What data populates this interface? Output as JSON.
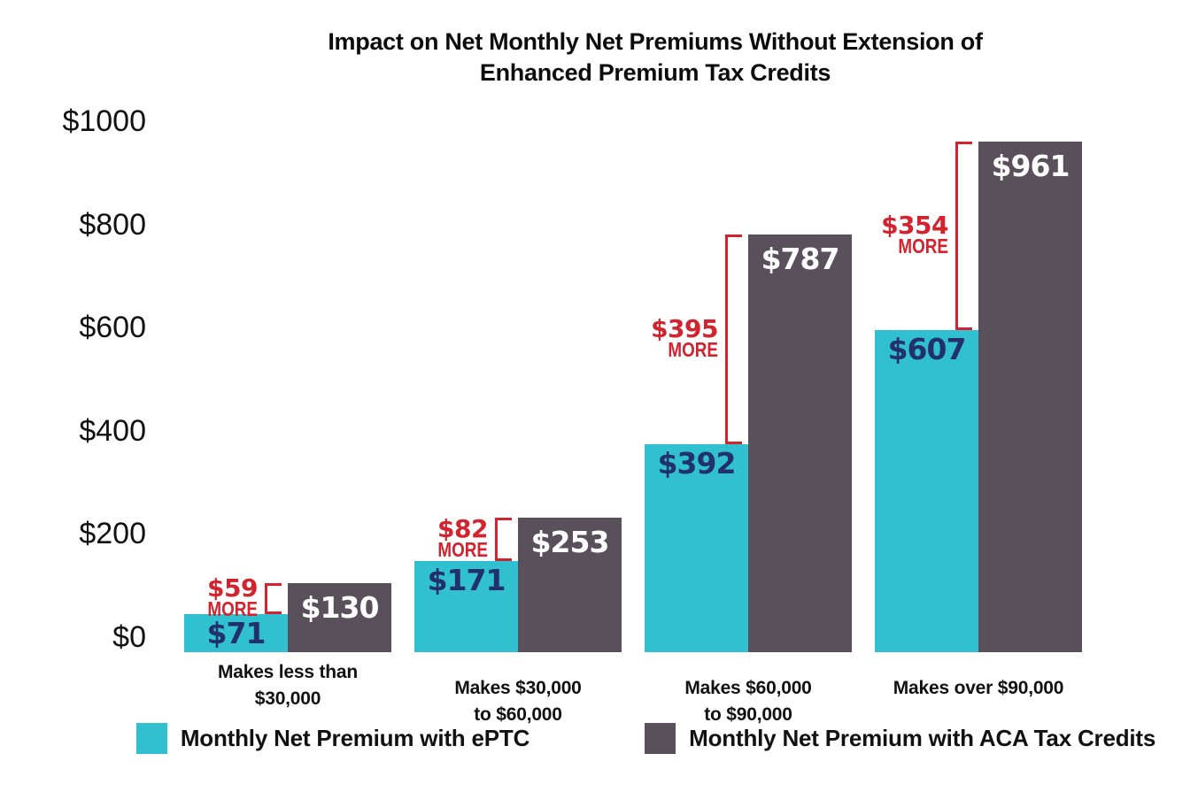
{
  "title": {
    "line1": "Impact on Net Monthly Net Premiums Without Extension of",
    "line2": "Enhanced Premium Tax Credits"
  },
  "chart_data": {
    "type": "bar",
    "title": "Impact on Net Monthly Net Premiums Without Extension of Enhanced Premium Tax Credits",
    "ylim": [
      0,
      1000
    ],
    "grid": false,
    "legend_position": "bottom",
    "y_ticks": [
      {
        "value": 1000,
        "label": "$1000"
      },
      {
        "value": 800,
        "label": "$800"
      },
      {
        "value": 600,
        "label": "$600"
      },
      {
        "value": 400,
        "label": "$400"
      },
      {
        "value": 200,
        "label": "$200"
      },
      {
        "value": 0,
        "label": "$0"
      }
    ],
    "categories": [
      {
        "lines": [
          "Makes less than",
          "$30,000"
        ]
      },
      {
        "lines": [
          "Makes $30,000",
          "to $60,000"
        ]
      },
      {
        "lines": [
          "Makes $60,000",
          "to $90,000"
        ]
      },
      {
        "lines": [
          "Makes over $90,000"
        ]
      }
    ],
    "series": [
      {
        "name": "Monthly Net Premium with ePTC",
        "color": "#30c0cf",
        "label_color": "#22306b",
        "values": [
          71,
          171,
          392,
          607
        ],
        "labels": [
          "$71",
          "$171",
          "$392",
          "$607"
        ]
      },
      {
        "name": "Monthly Net Premium with ACA Tax Credits",
        "color": "#59505c",
        "label_color": "#ffffff",
        "values": [
          130,
          253,
          787,
          961
        ],
        "labels": [
          "$130",
          "$253",
          "$787",
          "$961"
        ]
      }
    ],
    "difference_annotations": {
      "word": "MORE",
      "color": "#d2232e",
      "values": [
        59,
        82,
        395,
        354
      ],
      "labels": [
        "$59",
        "$82",
        "$395",
        "$354"
      ]
    }
  }
}
